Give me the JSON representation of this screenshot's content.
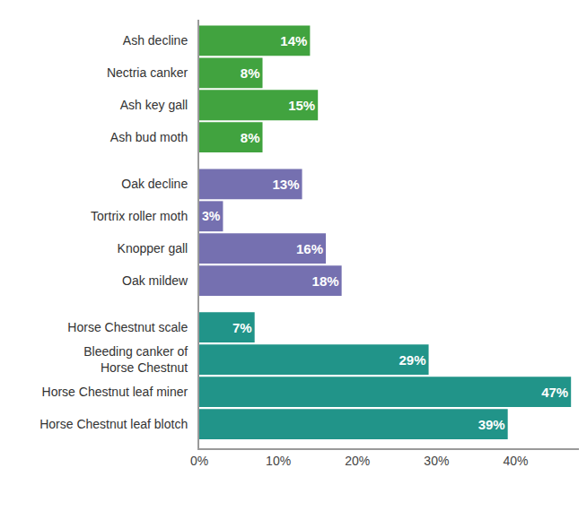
{
  "chart_data": {
    "type": "bar",
    "orientation": "horizontal",
    "categories": [
      "Ash decline",
      "Nectria canker",
      "Ash key gall",
      "Ash bud moth",
      "Oak decline",
      "Tortrix roller moth",
      "Knopper gall",
      "Oak mildew",
      "Horse Chestnut scale",
      "Bleeding canker of\nHorse Chestnut",
      "Horse Chestnut leaf miner",
      "Horse Chestnut leaf blotch"
    ],
    "values": [
      14,
      8,
      15,
      8,
      13,
      3,
      16,
      18,
      7,
      29,
      47,
      39
    ],
    "value_labels": [
      "14%",
      "8%",
      "15%",
      "8%",
      "13%",
      "3%",
      "16%",
      "18%",
      "7%",
      "29%",
      "47%",
      "39%"
    ],
    "colors": [
      "#41a33f",
      "#41a33f",
      "#41a33f",
      "#41a33f",
      "#7570b0",
      "#7570b0",
      "#7570b0",
      "#7570b0",
      "#219489",
      "#219489",
      "#219489",
      "#219489"
    ],
    "xlim": [
      0,
      48
    ],
    "xticks": [
      {
        "value": 0,
        "label": "0%"
      },
      {
        "value": 10,
        "label": "10%"
      },
      {
        "value": 20,
        "label": "20%"
      },
      {
        "value": 30,
        "label": "30%"
      },
      {
        "value": 40,
        "label": "40%"
      }
    ],
    "data_labels": true,
    "grid": false
  }
}
